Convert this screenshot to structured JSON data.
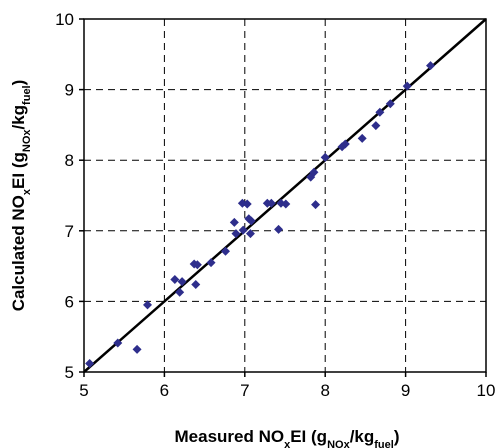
{
  "chart_data": {
    "type": "scatter",
    "xlabel": {
      "parts": [
        {
          "text": "Measured NO",
          "sub": false
        },
        {
          "text": "x",
          "sub": true
        },
        {
          "text": "EI (g",
          "sub": false
        },
        {
          "text": "NOx",
          "sub": true
        },
        {
          "text": "/kg",
          "sub": false
        },
        {
          "text": "fuel",
          "sub": true
        },
        {
          "text": ")",
          "sub": false
        }
      ]
    },
    "ylabel": {
      "parts": [
        {
          "text": "Calculated NO",
          "sub": false
        },
        {
          "text": "x",
          "sub": true
        },
        {
          "text": "EI (g",
          "sub": false
        },
        {
          "text": "NOx",
          "sub": true
        },
        {
          "text": "/kg",
          "sub": false
        },
        {
          "text": "fuel",
          "sub": true
        },
        {
          "text": ")",
          "sub": false
        }
      ]
    },
    "xlim": [
      5,
      10
    ],
    "ylim": [
      5,
      10
    ],
    "xticks": [
      "5",
      "6",
      "7",
      "8",
      "9",
      "10"
    ],
    "yticks": [
      "5",
      "6",
      "7",
      "8",
      "9",
      "10"
    ],
    "grid": true,
    "marker_color": "#2e2e8c",
    "line_color": "#000000",
    "series": [
      {
        "marker": "diamond",
        "points": [
          [
            5.07,
            5.12
          ],
          [
            5.42,
            5.41
          ],
          [
            5.66,
            5.32
          ],
          [
            5.79,
            5.95
          ],
          [
            6.13,
            6.31
          ],
          [
            6.19,
            6.13
          ],
          [
            6.22,
            6.28
          ],
          [
            6.37,
            6.53
          ],
          [
            6.39,
            6.24
          ],
          [
            6.41,
            6.52
          ],
          [
            6.58,
            6.55
          ],
          [
            6.76,
            6.71
          ],
          [
            6.87,
            7.12
          ],
          [
            6.89,
            6.96
          ],
          [
            6.97,
            7.39
          ],
          [
            6.98,
            7.01
          ],
          [
            7.03,
            7.38
          ],
          [
            7.05,
            7.17
          ],
          [
            7.07,
            6.96
          ],
          [
            7.08,
            7.14
          ],
          [
            7.28,
            7.39
          ],
          [
            7.33,
            7.39
          ],
          [
            7.42,
            7.02
          ],
          [
            7.45,
            7.39
          ],
          [
            7.51,
            7.38
          ],
          [
            7.82,
            7.76
          ],
          [
            7.86,
            7.83
          ],
          [
            7.88,
            7.37
          ],
          [
            8.0,
            8.04
          ],
          [
            8.21,
            8.19
          ],
          [
            8.25,
            8.23
          ],
          [
            8.46,
            8.31
          ],
          [
            8.63,
            8.49
          ],
          [
            8.68,
            8.68
          ],
          [
            8.81,
            8.8
          ],
          [
            9.02,
            9.05
          ],
          [
            9.31,
            9.34
          ]
        ]
      }
    ],
    "fit_line": {
      "x": [
        5,
        10
      ],
      "y": [
        5,
        10
      ]
    }
  }
}
